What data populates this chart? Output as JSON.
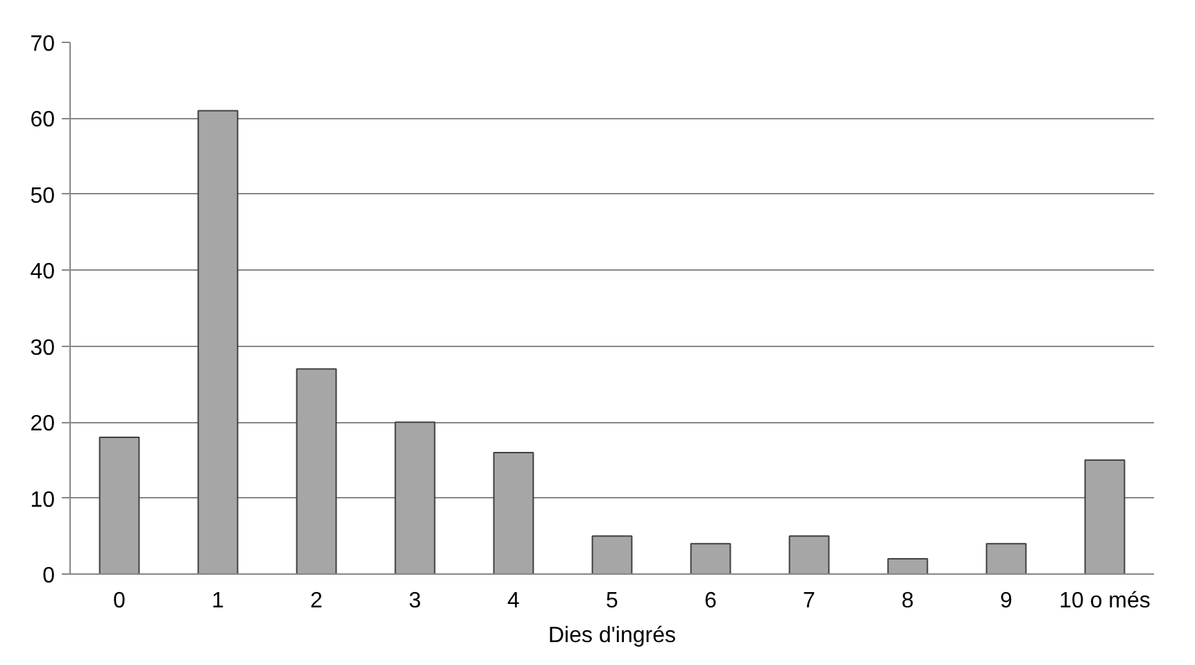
{
  "chart_data": {
    "type": "bar",
    "xlabel": "Dies d'ingrés",
    "categories": [
      "0",
      "1",
      "2",
      "3",
      "4",
      "5",
      "6",
      "7",
      "8",
      "9",
      "10 o més"
    ],
    "values": [
      18,
      61,
      27,
      20,
      16,
      5,
      4,
      5,
      2,
      4,
      15
    ],
    "color": "#a6a6a6",
    "ylim": [
      0,
      70
    ],
    "yticks": [
      0,
      10,
      20,
      30,
      40,
      50,
      60,
      70
    ],
    "grid": "y"
  }
}
